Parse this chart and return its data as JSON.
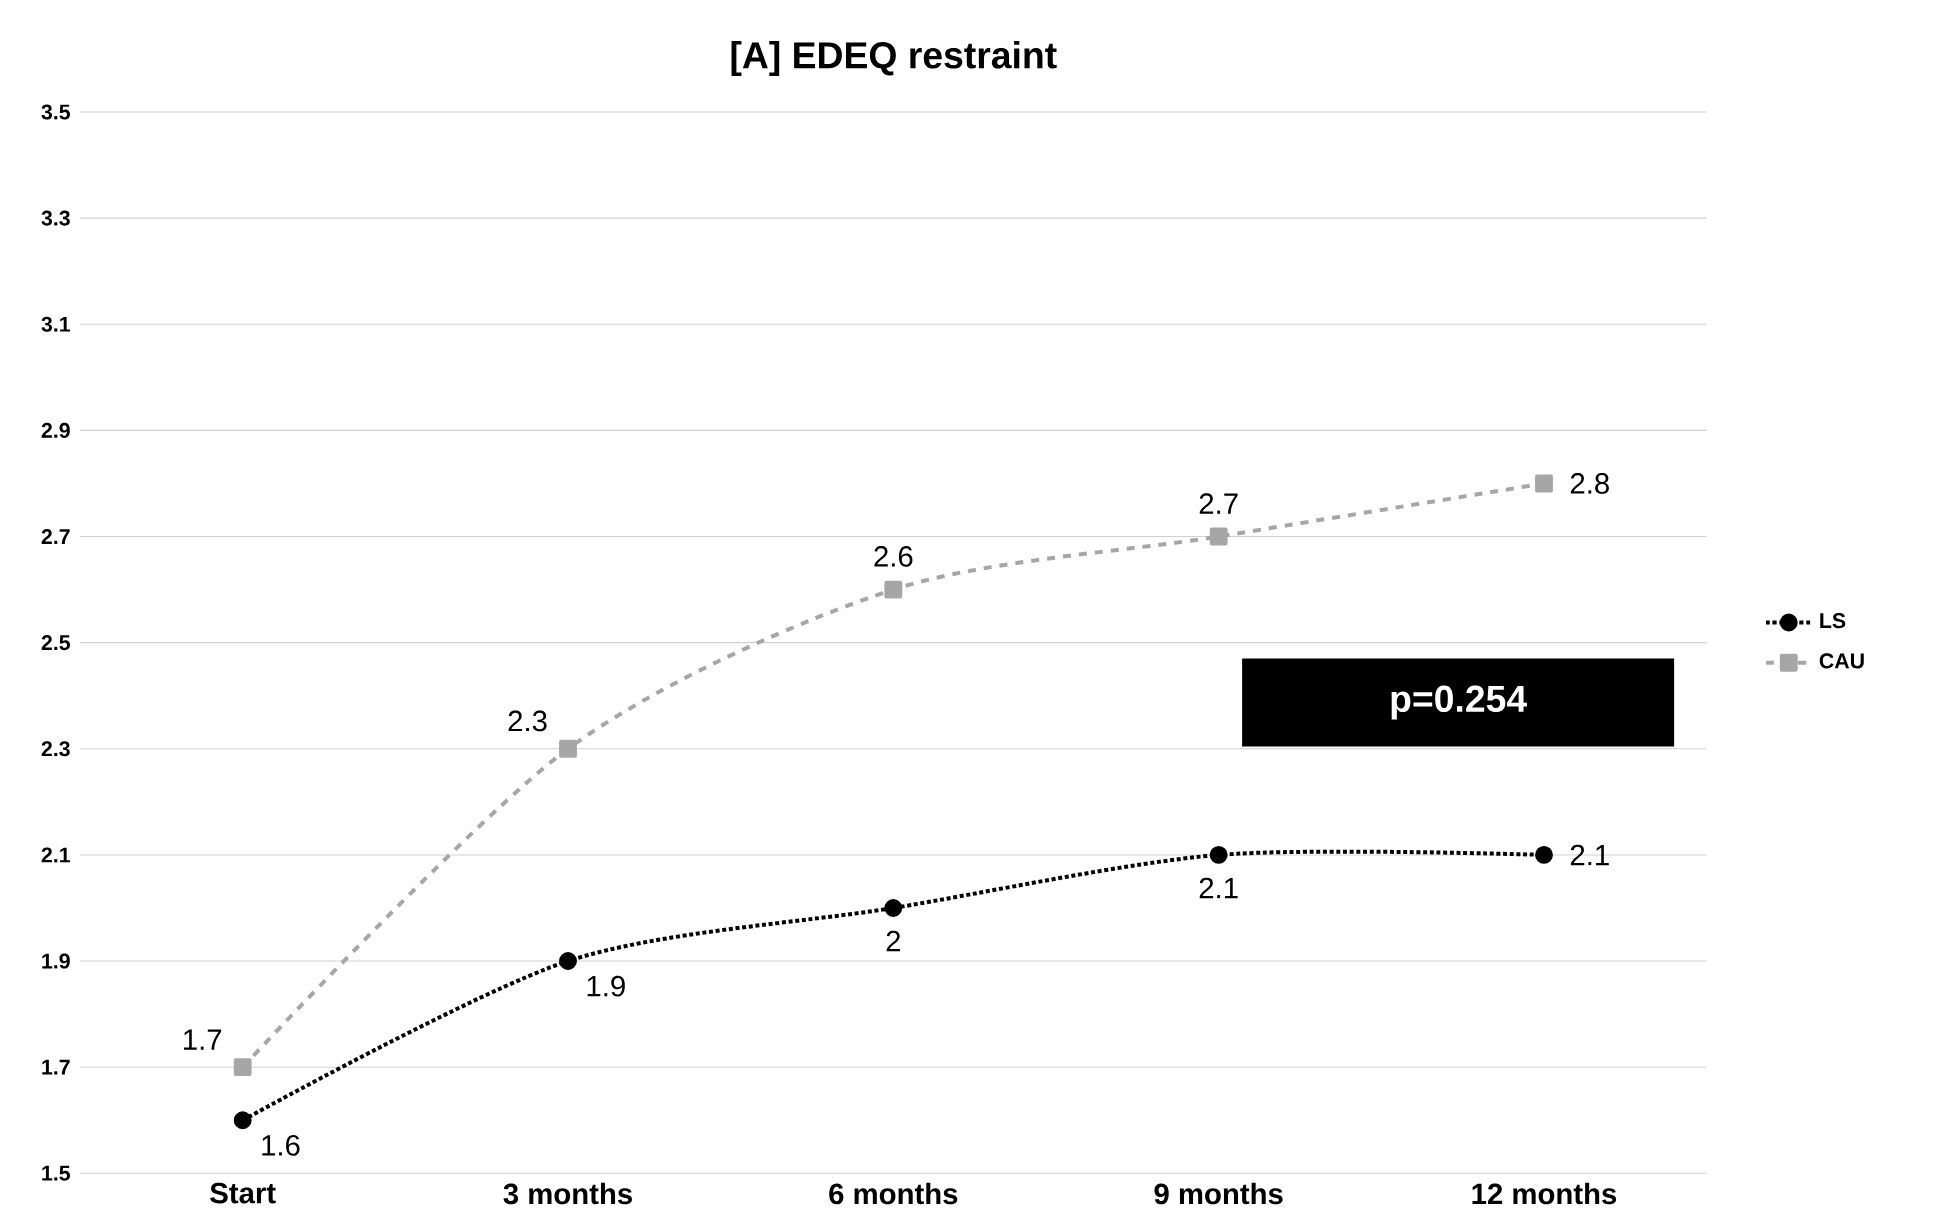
{
  "chart_data": {
    "type": "line",
    "title": "[A] EDEQ restraint",
    "categories": [
      "Start",
      "3 months",
      "6 months",
      "9 months",
      "12 months"
    ],
    "series": [
      {
        "name": "LS",
        "color": "#000000",
        "marker": "circle",
        "line_style": "dotted",
        "values": [
          1.6,
          1.9,
          2,
          2.1,
          2.1
        ]
      },
      {
        "name": "CAU",
        "color": "#a6a6a6",
        "marker": "square",
        "line_style": "dashed",
        "values": [
          1.7,
          2.3,
          2.6,
          2.7,
          2.8
        ]
      }
    ],
    "ylim": [
      1.5,
      3.5
    ],
    "yticks": [
      1.5,
      1.7,
      1.9,
      2.1,
      2.3,
      2.5,
      2.7,
      2.9,
      3.1,
      3.3,
      3.5
    ],
    "grid": "y",
    "legend": "right",
    "data_labels": true,
    "annotations": [
      "p=0.254"
    ]
  }
}
